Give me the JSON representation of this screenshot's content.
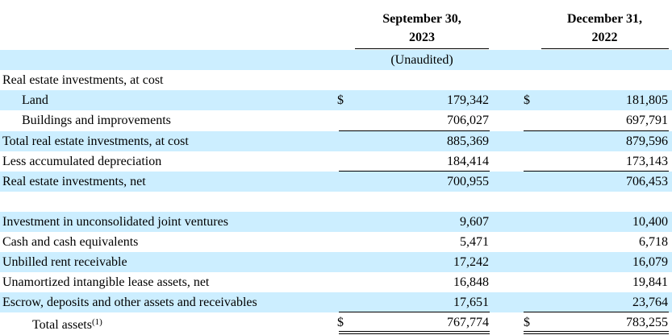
{
  "header": {
    "col1_line1": "September 30,",
    "col1_line2": "2023",
    "col1_note": "(Unaudited)",
    "col2_line1": "December 31,",
    "col2_line2": "2022"
  },
  "currency_symbol": "$",
  "rows": {
    "real_estate_at_cost": {
      "label": "Real estate investments, at cost"
    },
    "land": {
      "label": "Land",
      "sep_2023": "179,342",
      "dec_2022": "181,805"
    },
    "buildings": {
      "label": "Buildings and improvements",
      "sep_2023": "706,027",
      "dec_2022": "697,791"
    },
    "total_real_estate": {
      "label": "Total real estate investments, at cost",
      "sep_2023": "885,369",
      "dec_2022": "879,596"
    },
    "accumulated_depreciation": {
      "label": "Less accumulated depreciation",
      "sep_2023": "184,414",
      "dec_2022": "173,143"
    },
    "real_estate_net": {
      "label": "Real estate investments, net",
      "sep_2023": "700,955",
      "dec_2022": "706,453"
    },
    "joint_ventures": {
      "label": "Investment in unconsolidated joint ventures",
      "sep_2023": "9,607",
      "dec_2022": "10,400"
    },
    "cash": {
      "label": "Cash and cash equivalents",
      "sep_2023": "5,471",
      "dec_2022": "6,718"
    },
    "unbilled_rent": {
      "label": "Unbilled rent receivable",
      "sep_2023": "17,242",
      "dec_2022": "16,079"
    },
    "intangible_assets": {
      "label": "Unamortized intangible lease assets, net",
      "sep_2023": "16,848",
      "dec_2022": "19,841"
    },
    "escrow": {
      "label": "Escrow, deposits and other assets and receivables",
      "sep_2023": "17,651",
      "dec_2022": "23,764"
    },
    "total_assets": {
      "label": "Total assets",
      "footnote": "(1)",
      "sep_2023": "767,774",
      "dec_2022": "783,255"
    }
  }
}
